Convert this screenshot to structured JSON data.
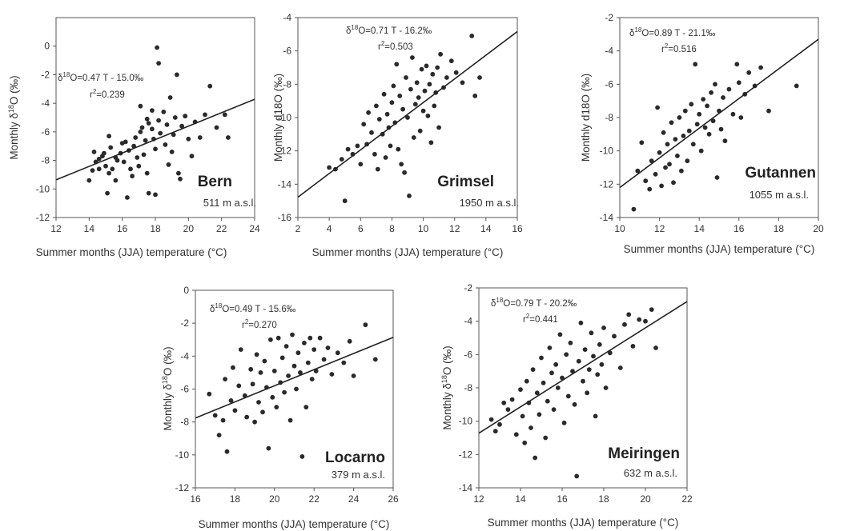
{
  "chart_data": [
    {
      "type": "scatter",
      "site": "Bern",
      "altitude": "511 m a.s.l.",
      "equation_prefix": "δ",
      "equation_sup": "18",
      "equation_rest": "O=0.47 T - 15.0‰",
      "r2_value": "=0.239",
      "xlabel": "Summer months (JJA) temperature (°C)",
      "ylabel": "Monthly δ18O (‰)",
      "xlim": [
        12,
        24
      ],
      "ylim": [
        -12,
        2
      ],
      "xticks": [
        12,
        14,
        16,
        18,
        20,
        22,
        24
      ],
      "yticks": [
        -12,
        -10,
        -8,
        -6,
        -4,
        -2,
        0
      ],
      "trendline": {
        "slope": 0.47,
        "intercept": -15.0
      },
      "points": [
        [
          14.0,
          -9.4
        ],
        [
          14.2,
          -8.7
        ],
        [
          14.4,
          -8.1
        ],
        [
          14.3,
          -7.4
        ],
        [
          14.6,
          -7.9
        ],
        [
          14.6,
          -8.6
        ],
        [
          14.8,
          -7.7
        ],
        [
          14.9,
          -7.5
        ],
        [
          15.0,
          -8.4
        ],
        [
          15.2,
          -8.9
        ],
        [
          15.1,
          -10.3
        ],
        [
          15.3,
          -7.1
        ],
        [
          15.4,
          -8.6
        ],
        [
          15.2,
          -6.3
        ],
        [
          15.6,
          -7.8
        ],
        [
          15.7,
          -8.0
        ],
        [
          15.6,
          -9.4
        ],
        [
          15.9,
          -7.5
        ],
        [
          16.0,
          -6.8
        ],
        [
          16.1,
          -8.1
        ],
        [
          16.2,
          -6.7
        ],
        [
          16.4,
          -7.3
        ],
        [
          16.3,
          -10.6
        ],
        [
          16.5,
          -8.6
        ],
        [
          16.6,
          -9.1
        ],
        [
          16.8,
          -6.4
        ],
        [
          16.9,
          -7.8
        ],
        [
          16.7,
          -7.0
        ],
        [
          17.0,
          -8.4
        ],
        [
          17.1,
          -6.0
        ],
        [
          17.2,
          -5.7
        ],
        [
          17.1,
          -4.2
        ],
        [
          17.3,
          -7.6
        ],
        [
          17.4,
          -6.6
        ],
        [
          17.5,
          -5.1
        ],
        [
          17.6,
          -5.4
        ],
        [
          17.5,
          -8.9
        ],
        [
          17.6,
          -10.3
        ],
        [
          17.8,
          -5.8
        ],
        [
          17.9,
          -6.5
        ],
        [
          17.8,
          -4.5
        ],
        [
          18.0,
          -7.2
        ],
        [
          18.1,
          -0.1
        ],
        [
          18.2,
          -1.2
        ],
        [
          18.0,
          -10.4
        ],
        [
          18.2,
          -5.2
        ],
        [
          18.3,
          -6.1
        ],
        [
          18.5,
          -4.6
        ],
        [
          18.6,
          -6.9
        ],
        [
          18.7,
          -5.5
        ],
        [
          18.8,
          -8.3
        ],
        [
          18.9,
          -3.6
        ],
        [
          19.0,
          -7.4
        ],
        [
          19.1,
          -6.2
        ],
        [
          19.2,
          -5.0
        ],
        [
          19.3,
          -2.0
        ],
        [
          19.4,
          -8.9
        ],
        [
          19.5,
          -9.3
        ],
        [
          19.6,
          -5.6
        ],
        [
          19.8,
          -4.9
        ],
        [
          20.0,
          -6.5
        ],
        [
          20.2,
          -7.7
        ],
        [
          20.4,
          -5.3
        ],
        [
          20.7,
          -6.4
        ],
        [
          21.0,
          -4.8
        ],
        [
          21.3,
          -2.8
        ],
        [
          21.7,
          -5.7
        ],
        [
          22.2,
          -4.8
        ],
        [
          22.4,
          -6.4
        ]
      ]
    },
    {
      "type": "scatter",
      "site": "Grimsel",
      "altitude": "1950 m a.s.l.",
      "equation_prefix": "δ",
      "equation_sup": "18",
      "equation_rest": "O=0.71 T - 16.2‰",
      "r2_value": "=0.503",
      "xlabel": "Summer months (JJA) temperature (°C)",
      "ylabel": "Monthly d18O (‰)",
      "xlim": [
        2,
        16
      ],
      "ylim": [
        -16,
        -4
      ],
      "xticks": [
        2,
        4,
        6,
        8,
        10,
        12,
        14,
        16
      ],
      "yticks": [
        -16,
        -14,
        -12,
        -10,
        -8,
        -6,
        -4
      ],
      "trendline": {
        "slope": 0.71,
        "intercept": -16.2
      },
      "points": [
        [
          4.0,
          -13.0
        ],
        [
          4.4,
          -13.1
        ],
        [
          4.8,
          -12.5
        ],
        [
          5.0,
          -15.0
        ],
        [
          5.2,
          -11.9
        ],
        [
          5.5,
          -12.2
        ],
        [
          5.8,
          -11.7
        ],
        [
          6.0,
          -12.8
        ],
        [
          6.2,
          -10.4
        ],
        [
          6.4,
          -11.6
        ],
        [
          6.5,
          -9.7
        ],
        [
          6.7,
          -10.9
        ],
        [
          6.9,
          -12.2
        ],
        [
          7.0,
          -9.3
        ],
        [
          7.1,
          -13.1
        ],
        [
          7.2,
          -10.1
        ],
        [
          7.4,
          -11.0
        ],
        [
          7.5,
          -8.6
        ],
        [
          7.6,
          -12.4
        ],
        [
          7.7,
          -9.8
        ],
        [
          7.8,
          -10.6
        ],
        [
          7.9,
          -11.7
        ],
        [
          8.0,
          -9.1
        ],
        [
          8.1,
          -8.1
        ],
        [
          8.2,
          -10.3
        ],
        [
          8.3,
          -6.8
        ],
        [
          8.4,
          -11.9
        ],
        [
          8.5,
          -8.7
        ],
        [
          8.6,
          -12.8
        ],
        [
          8.7,
          -9.5
        ],
        [
          8.8,
          -13.3
        ],
        [
          8.9,
          -7.6
        ],
        [
          9.0,
          -10.0
        ],
        [
          9.1,
          -14.7
        ],
        [
          9.2,
          -8.3
        ],
        [
          9.3,
          -6.4
        ],
        [
          9.4,
          -11.2
        ],
        [
          9.5,
          -9.2
        ],
        [
          9.6,
          -7.9
        ],
        [
          9.7,
          -8.8
        ],
        [
          9.8,
          -10.8
        ],
        [
          9.9,
          -7.1
        ],
        [
          10.0,
          -9.6
        ],
        [
          10.1,
          -8.4
        ],
        [
          10.2,
          -6.9
        ],
        [
          10.3,
          -9.9
        ],
        [
          10.4,
          -8.0
        ],
        [
          10.5,
          -11.5
        ],
        [
          10.6,
          -7.4
        ],
        [
          10.7,
          -9.3
        ],
        [
          10.8,
          -8.5
        ],
        [
          10.9,
          -7.0
        ],
        [
          11.0,
          -10.6
        ],
        [
          11.1,
          -6.2
        ],
        [
          11.3,
          -8.2
        ],
        [
          11.5,
          -7.6
        ],
        [
          11.8,
          -6.6
        ],
        [
          12.1,
          -7.3
        ],
        [
          12.5,
          -7.9
        ],
        [
          13.1,
          -5.1
        ],
        [
          13.3,
          -8.7
        ],
        [
          13.6,
          -7.6
        ]
      ]
    },
    {
      "type": "scatter",
      "site": "Gutannen",
      "altitude": "1055 m a.s.l.",
      "equation_prefix": "δ",
      "equation_sup": "18",
      "equation_rest": "O=0.89 T - 21.1‰",
      "r2_value": "=0.516",
      "xlabel": "Summer months (JJA) temperature (°C)",
      "ylabel": "Monthly d18O (‰)",
      "xlim": [
        10,
        20
      ],
      "ylim": [
        -14,
        -2
      ],
      "xticks": [
        10,
        12,
        14,
        16,
        18,
        20
      ],
      "yticks": [
        -14,
        -12,
        -10,
        -8,
        -6,
        -4,
        -2
      ],
      "trendline": {
        "slope": 0.89,
        "intercept": -21.1
      },
      "points": [
        [
          10.7,
          -13.5
        ],
        [
          10.9,
          -11.2
        ],
        [
          11.1,
          -9.5
        ],
        [
          11.3,
          -11.8
        ],
        [
          11.5,
          -12.3
        ],
        [
          11.6,
          -10.6
        ],
        [
          11.8,
          -11.4
        ],
        [
          11.9,
          -7.4
        ],
        [
          12.0,
          -10.1
        ],
        [
          12.1,
          -12.1
        ],
        [
          12.2,
          -8.9
        ],
        [
          12.3,
          -11.0
        ],
        [
          12.4,
          -9.6
        ],
        [
          12.5,
          -10.8
        ],
        [
          12.6,
          -8.3
        ],
        [
          12.7,
          -11.9
        ],
        [
          12.8,
          -9.3
        ],
        [
          12.9,
          -10.3
        ],
        [
          13.0,
          -8.0
        ],
        [
          13.1,
          -11.2
        ],
        [
          13.2,
          -9.1
        ],
        [
          13.3,
          -7.6
        ],
        [
          13.4,
          -10.6
        ],
        [
          13.5,
          -8.8
        ],
        [
          13.6,
          -7.2
        ],
        [
          13.7,
          -9.6
        ],
        [
          13.8,
          -4.8
        ],
        [
          13.9,
          -8.4
        ],
        [
          14.0,
          -7.8
        ],
        [
          14.1,
          -10.0
        ],
        [
          14.2,
          -6.9
        ],
        [
          14.3,
          -8.6
        ],
        [
          14.4,
          -7.3
        ],
        [
          14.5,
          -9.0
        ],
        [
          14.6,
          -6.5
        ],
        [
          14.7,
          -8.2
        ],
        [
          14.8,
          -6.0
        ],
        [
          14.9,
          -11.6
        ],
        [
          15.0,
          -7.6
        ],
        [
          15.1,
          -8.7
        ],
        [
          15.2,
          -6.8
        ],
        [
          15.3,
          -9.4
        ],
        [
          15.5,
          -6.3
        ],
        [
          15.7,
          -7.8
        ],
        [
          15.9,
          -4.8
        ],
        [
          16.0,
          -5.9
        ],
        [
          16.1,
          -8.0
        ],
        [
          16.3,
          -6.6
        ],
        [
          16.5,
          -5.3
        ],
        [
          16.8,
          -6.1
        ],
        [
          17.1,
          -5.0
        ],
        [
          17.5,
          -7.6
        ],
        [
          18.9,
          -6.1
        ]
      ]
    },
    {
      "type": "scatter",
      "site": "Locarno",
      "altitude": "379 m a.s.l.",
      "equation_prefix": "δ",
      "equation_sup": "18",
      "equation_rest": "O=0.49 T - 15.6‰",
      "r2_value": "=0.270",
      "xlabel": "Summer months (JJA) temperature (°C)",
      "ylabel": "Monthly δ18O (‰)",
      "xlim": [
        16,
        26
      ],
      "ylim": [
        -12,
        0
      ],
      "xticks": [
        16,
        18,
        20,
        22,
        24,
        26
      ],
      "yticks": [
        -12,
        -10,
        -8,
        -6,
        -4,
        -2,
        0
      ],
      "trendline": {
        "slope": 0.49,
        "intercept": -15.6
      },
      "points": [
        [
          16.7,
          -6.3
        ],
        [
          17.0,
          -7.6
        ],
        [
          17.2,
          -8.8
        ],
        [
          17.4,
          -7.9
        ],
        [
          17.5,
          -5.4
        ],
        [
          17.6,
          -9.8
        ],
        [
          17.8,
          -6.7
        ],
        [
          17.9,
          -4.7
        ],
        [
          18.0,
          -7.3
        ],
        [
          18.2,
          -5.8
        ],
        [
          18.3,
          -3.6
        ],
        [
          18.5,
          -6.4
        ],
        [
          18.6,
          -7.7
        ],
        [
          18.8,
          -4.8
        ],
        [
          18.9,
          -5.7
        ],
        [
          19.0,
          -8.0
        ],
        [
          19.1,
          -3.9
        ],
        [
          19.2,
          -6.8
        ],
        [
          19.3,
          -5.0
        ],
        [
          19.4,
          -7.4
        ],
        [
          19.5,
          -4.3
        ],
        [
          19.6,
          -5.9
        ],
        [
          19.7,
          -9.6
        ],
        [
          19.8,
          -3.0
        ],
        [
          19.9,
          -6.5
        ],
        [
          20.0,
          -4.9
        ],
        [
          20.1,
          -7.1
        ],
        [
          20.2,
          -2.9
        ],
        [
          20.3,
          -5.6
        ],
        [
          20.4,
          -4.1
        ],
        [
          20.5,
          -6.2
        ],
        [
          20.6,
          -3.4
        ],
        [
          20.7,
          -5.2
        ],
        [
          20.8,
          -7.9
        ],
        [
          20.9,
          -2.7
        ],
        [
          21.0,
          -4.6
        ],
        [
          21.1,
          -6.0
        ],
        [
          21.2,
          -3.8
        ],
        [
          21.3,
          -5.0
        ],
        [
          21.4,
          -10.1
        ],
        [
          21.5,
          -3.2
        ],
        [
          21.6,
          -7.1
        ],
        [
          21.7,
          -4.4
        ],
        [
          21.8,
          -2.9
        ],
        [
          21.9,
          -5.4
        ],
        [
          22.0,
          -3.6
        ],
        [
          22.1,
          -4.9
        ],
        [
          22.3,
          -2.9
        ],
        [
          22.5,
          -4.2
        ],
        [
          22.7,
          -3.5
        ],
        [
          22.9,
          -5.1
        ],
        [
          23.2,
          -3.8
        ],
        [
          23.5,
          -4.4
        ],
        [
          23.8,
          -3.1
        ],
        [
          24.0,
          -5.2
        ],
        [
          24.6,
          -2.1
        ],
        [
          25.1,
          -4.2
        ]
      ]
    },
    {
      "type": "scatter",
      "site": "Meiringen",
      "altitude": "632 m a.s.l.",
      "equation_prefix": "δ",
      "equation_sup": "18",
      "equation_rest": "O=0.79 T - 20.2‰",
      "r2_value": "=0.441",
      "xlabel": "Summer months (JJA) temperature (°C)",
      "ylabel": "Monthly δ18O (‰)",
      "xlim": [
        12,
        22
      ],
      "ylim": [
        -14,
        -2
      ],
      "xticks": [
        12,
        14,
        16,
        18,
        20,
        22
      ],
      "yticks": [
        -14,
        -12,
        -10,
        -8,
        -6,
        -4,
        -2
      ],
      "trendline": {
        "slope": 0.79,
        "intercept": -20.2
      },
      "points": [
        [
          12.6,
          -9.9
        ],
        [
          12.8,
          -10.6
        ],
        [
          13.0,
          -10.2
        ],
        [
          13.2,
          -8.9
        ],
        [
          13.4,
          -9.3
        ],
        [
          13.6,
          -8.7
        ],
        [
          13.8,
          -10.8
        ],
        [
          14.0,
          -8.1
        ],
        [
          14.1,
          -9.7
        ],
        [
          14.2,
          -11.3
        ],
        [
          14.3,
          -7.6
        ],
        [
          14.4,
          -8.9
        ],
        [
          14.5,
          -10.4
        ],
        [
          14.6,
          -6.9
        ],
        [
          14.7,
          -12.2
        ],
        [
          14.8,
          -8.3
        ],
        [
          14.9,
          -9.6
        ],
        [
          15.0,
          -6.2
        ],
        [
          15.1,
          -7.7
        ],
        [
          15.2,
          -11.0
        ],
        [
          15.3,
          -8.8
        ],
        [
          15.4,
          -5.6
        ],
        [
          15.5,
          -7.1
        ],
        [
          15.6,
          -9.3
        ],
        [
          15.7,
          -6.6
        ],
        [
          15.8,
          -8.0
        ],
        [
          15.9,
          -4.8
        ],
        [
          16.0,
          -7.4
        ],
        [
          16.1,
          -10.1
        ],
        [
          16.2,
          -6.0
        ],
        [
          16.3,
          -8.5
        ],
        [
          16.4,
          -5.3
        ],
        [
          16.5,
          -7.0
        ],
        [
          16.6,
          -9.0
        ],
        [
          16.7,
          -13.3
        ],
        [
          16.8,
          -6.4
        ],
        [
          16.9,
          -4.1
        ],
        [
          17.0,
          -7.6
        ],
        [
          17.1,
          -5.7
        ],
        [
          17.2,
          -8.3
        ],
        [
          17.3,
          -6.9
        ],
        [
          17.4,
          -4.7
        ],
        [
          17.5,
          -6.1
        ],
        [
          17.6,
          -9.7
        ],
        [
          17.7,
          -7.2
        ],
        [
          17.8,
          -5.4
        ],
        [
          17.9,
          -6.6
        ],
        [
          18.0,
          -4.4
        ],
        [
          18.1,
          -8.0
        ],
        [
          18.3,
          -5.9
        ],
        [
          18.5,
          -4.9
        ],
        [
          18.8,
          -6.8
        ],
        [
          19.0,
          -4.2
        ],
        [
          19.2,
          -3.6
        ],
        [
          19.4,
          -5.5
        ],
        [
          19.7,
          -3.9
        ],
        [
          20.0,
          -4.0
        ],
        [
          20.3,
          -3.3
        ],
        [
          20.5,
          -5.6
        ]
      ]
    }
  ]
}
